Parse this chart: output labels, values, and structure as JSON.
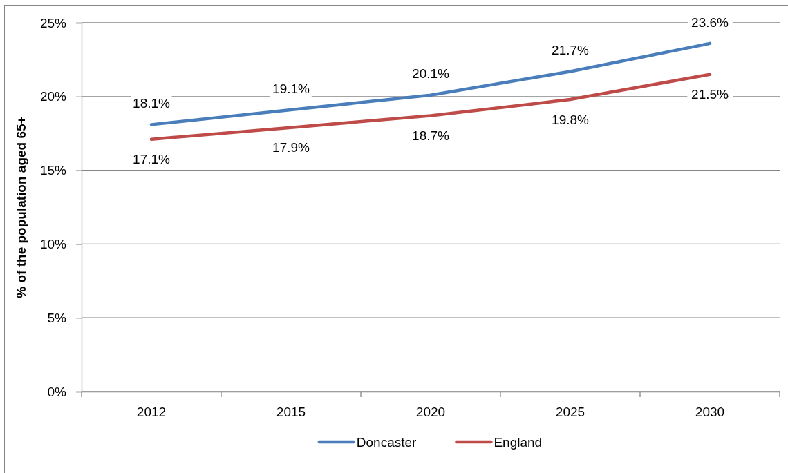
{
  "chart_data": {
    "type": "line",
    "ylabel": "% of the population aged 65+",
    "categories": [
      "2012",
      "2015",
      "2020",
      "2025",
      "2030"
    ],
    "series": [
      {
        "name": "Doncaster",
        "color": "#4a7ebb",
        "values": [
          18.1,
          19.1,
          20.1,
          21.7,
          23.6
        ],
        "value_labels": [
          "18.1%",
          "19.1%",
          "20.1%",
          "21.7%",
          "23.6%"
        ]
      },
      {
        "name": "England",
        "color": "#be4b48",
        "values": [
          17.1,
          17.9,
          18.7,
          19.8,
          21.5
        ],
        "value_labels": [
          "17.1%",
          "17.9%",
          "18.7%",
          "19.8%",
          "21.5%"
        ]
      }
    ],
    "ylim": [
      0,
      25
    ],
    "yticks": [
      {
        "value": 0,
        "label": "0%"
      },
      {
        "value": 5,
        "label": "5%"
      },
      {
        "value": 10,
        "label": "10%"
      },
      {
        "value": 15,
        "label": "15%"
      },
      {
        "value": 20,
        "label": "20%"
      },
      {
        "value": 25,
        "label": "25%"
      }
    ],
    "grid": "y",
    "legend": "bottom"
  }
}
